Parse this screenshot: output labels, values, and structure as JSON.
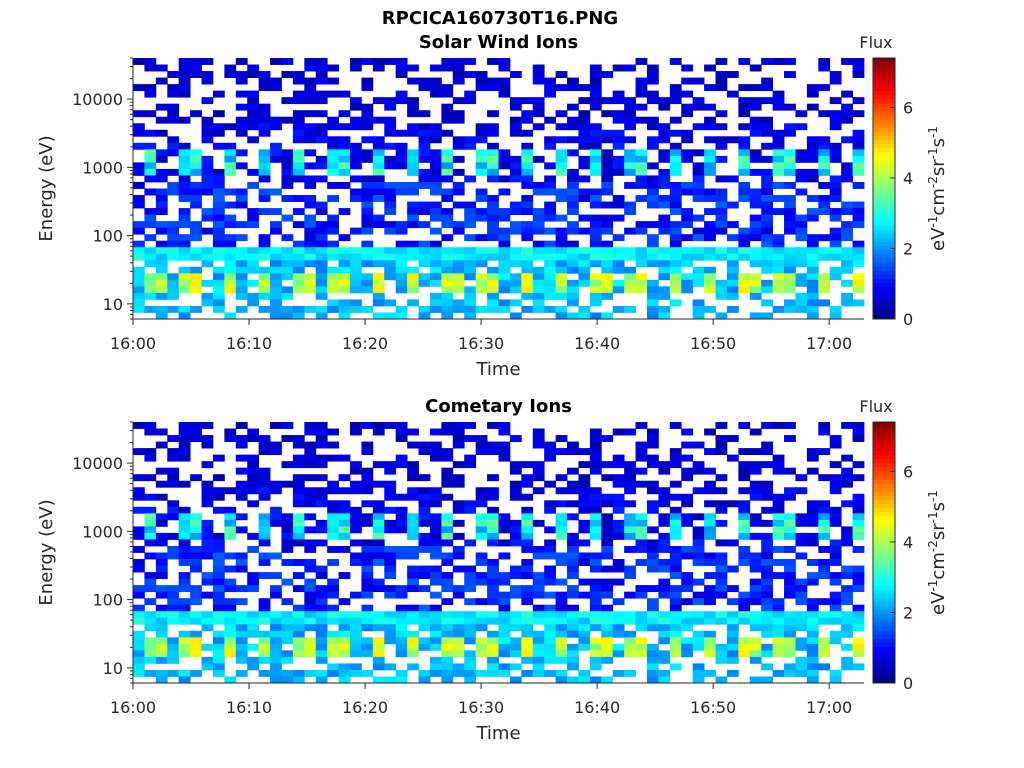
{
  "figure": {
    "title": "RPCICA160730T16.PNG"
  },
  "chart_data": [
    {
      "type": "heatmap",
      "title": "Solar Wind Ions",
      "xlabel": "Time",
      "ylabel": "Energy (eV)",
      "x_ticks": [
        "16:00",
        "16:10",
        "16:20",
        "16:30",
        "16:40",
        "16:50",
        "17:00"
      ],
      "x_range": [
        "16:00",
        "17:03"
      ],
      "y_scale": "log",
      "y_ticks": [
        10,
        100,
        1000,
        10000
      ],
      "y_range": [
        6,
        40000
      ],
      "colorbar": {
        "title": "Flux",
        "label": "eV-1cm-2sr-1s-1",
        "ticks": [
          0,
          2,
          4,
          6
        ],
        "range": [
          0,
          7.4
        ],
        "colormap": "jet"
      },
      "features": [
        {
          "energy": 20,
          "value": 4.2,
          "description": "periodic bright bursts"
        },
        {
          "energy": 50,
          "value": 2.6,
          "description": "continuous band"
        },
        {
          "energy": 1000,
          "value": 2.8,
          "description": "periodic pulses every ~3 min"
        }
      ]
    },
    {
      "type": "heatmap",
      "title": "Cometary Ions",
      "xlabel": "Time",
      "ylabel": "Energy (eV)",
      "x_ticks": [
        "16:00",
        "16:10",
        "16:20",
        "16:30",
        "16:40",
        "16:50",
        "17:00"
      ],
      "x_range": [
        "16:00",
        "17:03"
      ],
      "y_scale": "log",
      "y_ticks": [
        10,
        100,
        1000,
        10000
      ],
      "y_range": [
        6,
        40000
      ],
      "colorbar": {
        "title": "Flux",
        "label": "eV-1cm-2sr-1s-1",
        "ticks": [
          0,
          2,
          4,
          6
        ],
        "range": [
          0,
          7.4
        ],
        "colormap": "jet"
      },
      "features": [
        {
          "energy": 20,
          "value": 4.2,
          "description": "periodic bright bursts"
        },
        {
          "energy": 50,
          "value": 2.6,
          "description": "continuous band"
        },
        {
          "energy": 1000,
          "value": 2.8,
          "description": "periodic pulses every ~3 min"
        }
      ]
    }
  ]
}
